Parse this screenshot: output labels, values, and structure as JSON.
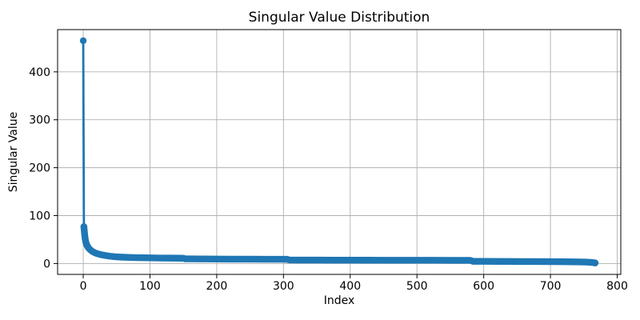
{
  "chart_data": {
    "type": "line",
    "title": "Singular Value Distribution",
    "xlabel": "Index",
    "ylabel": "Singular Value",
    "x_ticks": [
      0,
      100,
      200,
      300,
      400,
      500,
      600,
      700,
      800
    ],
    "y_ticks": [
      0,
      100,
      200,
      300,
      400
    ],
    "xlim": [
      -38.4,
      805.4
    ],
    "ylim": [
      -22.7,
      488.2
    ],
    "grid": true,
    "legend_position": "none",
    "line_color": "#1f77b4",
    "grid_color": "#b0b0b0",
    "frame_color": "#000000",
    "marker": "o",
    "points": [
      [
        0,
        465
      ],
      [
        1,
        77
      ],
      [
        2,
        62
      ],
      [
        3,
        51
      ],
      [
        4,
        44
      ],
      [
        5,
        40
      ],
      [
        6,
        37
      ],
      [
        7,
        34.5
      ],
      [
        8,
        32.5
      ],
      [
        9,
        31
      ],
      [
        10,
        29.5
      ],
      [
        12,
        27
      ],
      [
        14,
        25
      ],
      [
        16,
        23.5
      ],
      [
        18,
        22
      ],
      [
        20,
        21
      ],
      [
        25,
        19
      ],
      [
        30,
        17.5
      ],
      [
        35,
        16.3
      ],
      [
        40,
        15.3
      ],
      [
        45,
        14.5
      ],
      [
        50,
        14
      ],
      [
        60,
        13.2
      ],
      [
        70,
        12.7
      ],
      [
        80,
        12.3
      ],
      [
        90,
        12
      ],
      [
        100,
        11.8
      ],
      [
        115,
        11.5
      ],
      [
        130,
        11.3
      ],
      [
        145,
        11.1
      ],
      [
        150,
        11
      ],
      [
        153,
        9.8
      ],
      [
        160,
        9.7
      ],
      [
        175,
        9.6
      ],
      [
        200,
        9.4
      ],
      [
        225,
        9.2
      ],
      [
        250,
        9.1
      ],
      [
        275,
        9.0
      ],
      [
        300,
        8.9
      ],
      [
        305,
        8.8
      ],
      [
        309,
        7.4
      ],
      [
        325,
        7.3
      ],
      [
        350,
        7.2
      ],
      [
        375,
        7.1
      ],
      [
        400,
        7.0
      ],
      [
        425,
        6.95
      ],
      [
        450,
        6.9
      ],
      [
        475,
        6.85
      ],
      [
        500,
        6.8
      ],
      [
        525,
        6.75
      ],
      [
        550,
        6.7
      ],
      [
        570,
        6.65
      ],
      [
        580,
        6.6
      ],
      [
        584,
        4.6
      ],
      [
        600,
        4.5
      ],
      [
        625,
        4.35
      ],
      [
        650,
        4.2
      ],
      [
        675,
        4.05
      ],
      [
        700,
        3.9
      ],
      [
        720,
        3.7
      ],
      [
        735,
        3.5
      ],
      [
        745,
        3.3
      ],
      [
        752,
        3.0
      ],
      [
        758,
        2.6
      ],
      [
        762,
        2.2
      ],
      [
        765,
        1.7
      ],
      [
        767,
        1.2
      ]
    ]
  }
}
